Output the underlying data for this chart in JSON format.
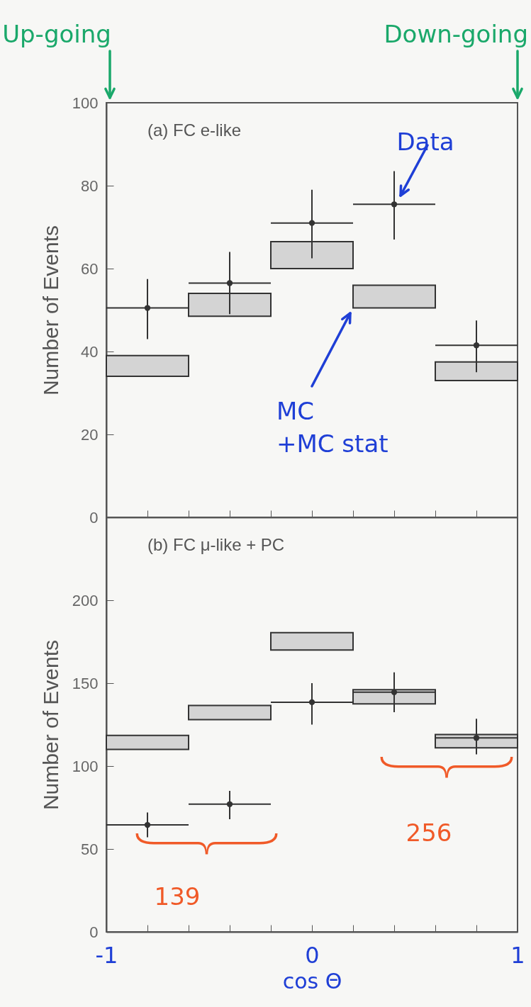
{
  "chart_data": [
    {
      "type": "scatter",
      "title": "(a) FC e-like",
      "ylabel": "Number of Events",
      "xlim": [
        -1,
        1
      ],
      "ylim": [
        0,
        100
      ],
      "yticks": [
        0,
        20,
        40,
        60,
        80,
        100
      ],
      "xticks": [
        -1,
        -0.8,
        -0.6,
        -0.4,
        -0.2,
        0,
        0.2,
        0.4,
        0.6,
        0.8,
        1
      ],
      "tick_labels": "y",
      "marker": "circle",
      "annotations": [
        "Up-going",
        "Down-going",
        "Data",
        "MC\n+MC stat"
      ],
      "series": [
        {
          "type": "bar",
          "color": "#d4d4d4",
          "x": [
            -0.8,
            -0.4,
            0,
            0.4,
            0.8
          ],
          "base": [
            34,
            48.5,
            60,
            50.5,
            33
          ],
          "values": [
            5,
            5.5,
            6.5,
            5.5,
            4.5
          ]
        },
        {
          "color": "#333333",
          "x": [
            -0.8,
            -0.4,
            0,
            0.4,
            0.8
          ],
          "values": [
            50.5,
            56.5,
            71,
            75.5,
            41.5
          ],
          "errors": [
            [
              43,
              57.5
            ],
            [
              49,
              64
            ],
            [
              62.5,
              79
            ],
            [
              67,
              83.5
            ],
            [
              35,
              47.5
            ]
          ],
          "xerrors": [
            0.2,
            0.2,
            0.2,
            0.2,
            0.2
          ]
        }
      ]
    },
    {
      "type": "scatter",
      "title": "(b) FC μ-like + PC",
      "xlabel": "cos Θ",
      "ylabel": "Number of Events",
      "xlim": [
        -1,
        1
      ],
      "ylim": [
        0,
        250
      ],
      "yticks": [
        0,
        50,
        100,
        150,
        200
      ],
      "xticks": [
        -1,
        {
          "value": -0.8,
          "label": null
        },
        {
          "value": -0.6,
          "label": null
        },
        {
          "value": -0.4,
          "label": null
        },
        {
          "value": -0.2,
          "label": null
        },
        0,
        {
          "value": 0.2,
          "label": null
        },
        {
          "value": 0.4,
          "label": null
        },
        {
          "value": 0.6,
          "label": null
        },
        {
          "value": 0.8,
          "label": null
        },
        1
      ],
      "marker": "circle",
      "annotations": [
        "139",
        "256"
      ],
      "series": [
        {
          "type": "bar",
          "color": "#d4d4d4",
          "x": [
            -0.8,
            -0.4,
            0,
            0.4,
            0.8
          ],
          "base": [
            110,
            128,
            170,
            137.5,
            111
          ],
          "values": [
            8.5,
            8.5,
            10.5,
            8.5,
            8
          ]
        },
        {
          "color": "#333333",
          "x": [
            -0.8,
            -0.4,
            0,
            0.4,
            0.8
          ],
          "values": [
            64.5,
            77,
            138.5,
            144.5,
            117
          ],
          "errors": [
            [
              57,
              72
            ],
            [
              68,
              85
            ],
            [
              125,
              150
            ],
            [
              132.5,
              156.5
            ],
            [
              107,
              128.5
            ]
          ],
          "xerrors": [
            0.2,
            0.2,
            0.2,
            0.2,
            0.2
          ]
        }
      ]
    }
  ]
}
